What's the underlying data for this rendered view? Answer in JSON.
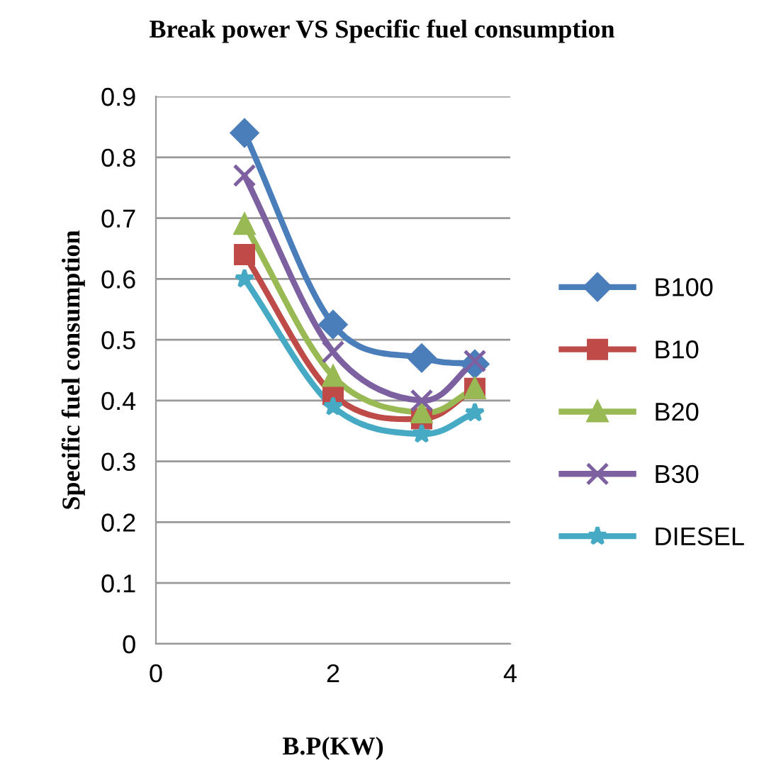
{
  "chart_data": {
    "type": "line",
    "title": "Break power VS Specific fuel consumption",
    "xlabel": "B.P(KW)",
    "ylabel": "Specific fuel consumption",
    "x": [
      1,
      2,
      3,
      3.6
    ],
    "series": [
      {
        "name": "B100",
        "color": "#4a7ebb",
        "marker": "diamond",
        "values": [
          0.84,
          0.525,
          0.47,
          0.46
        ]
      },
      {
        "name": "B10",
        "color": "#be4b48",
        "marker": "square",
        "values": [
          0.64,
          0.41,
          0.37,
          0.42
        ]
      },
      {
        "name": "B20",
        "color": "#98b954",
        "marker": "triangle",
        "values": [
          0.69,
          0.44,
          0.38,
          0.42
        ]
      },
      {
        "name": "B30",
        "color": "#7d60a0",
        "marker": "cross",
        "values": [
          0.77,
          0.48,
          0.4,
          0.465
        ]
      },
      {
        "name": "DIESEL",
        "color": "#46aac5",
        "marker": "star",
        "values": [
          0.6,
          0.39,
          0.345,
          0.38
        ]
      }
    ],
    "xlim": [
      0,
      4
    ],
    "xticks": [
      0,
      2,
      4
    ],
    "ylim": [
      0,
      0.9
    ],
    "yticks": [
      0,
      0.1,
      0.2,
      0.3,
      0.4,
      0.5,
      0.6,
      0.7,
      0.8,
      0.9
    ],
    "grid": "y",
    "legend": "right",
    "line_style": "solid"
  }
}
